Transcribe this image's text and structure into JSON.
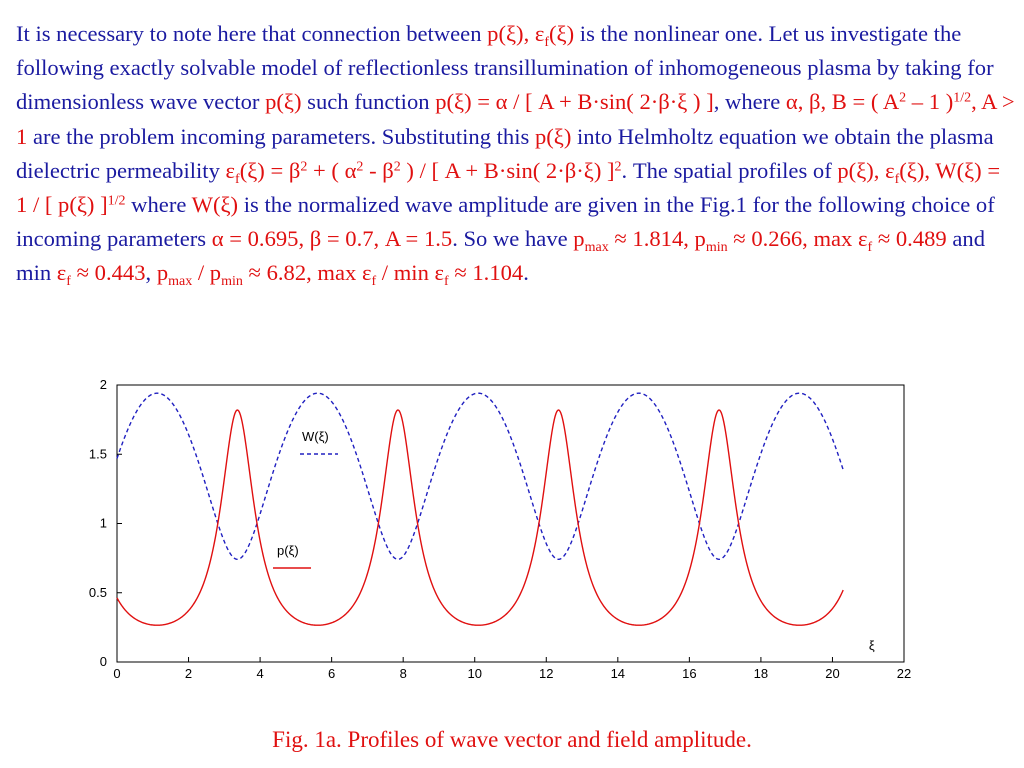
{
  "paragraph": {
    "s1": "It is necessary to note here that connection between ",
    "s2": "p(ξ), ε",
    "s3": "f",
    "s4": "(ξ)",
    "s5": " is the nonlinear one. Let us investigate the following exactly solvable model of reflectionless transillumination of inhomogeneous plasma by taking for dimensionless wave vector ",
    "s6": "p(ξ)",
    "s7": " such function ",
    "s8": "p(ξ) = α / [ A + B·sin( 2·β·ξ ) ]",
    "s9": ", where ",
    "s10": "α, β, B = ( A",
    "s11": "2",
    "s12": " – 1 )",
    "s13": "1/2",
    "s14": ", A > 1",
    "s15": " are the problem incoming parameters. Substituting this ",
    "s16": "p(ξ)",
    "s17": " into Helmholtz equation we obtain the plasma dielectric permeability ",
    "s18": "ε",
    "s19": "f",
    "s20": "(ξ) = β",
    "s21": "2",
    "s22": " + ( α",
    "s23": "2",
    "s24": " - β",
    "s25": "2",
    "s26": " ) / [ A + B·sin( 2·β·ξ) ]",
    "s27": "2",
    "s28": ". The spatial profiles of ",
    "s29": "p(ξ), ε",
    "s30": "f",
    "s31": "(ξ), W(ξ) = 1 / [ p(ξ) ]",
    "s32": "1/2",
    "s33": " where ",
    "s34": "W(ξ)",
    "s35": " is the normalized wave amplitude are given in the Fig.1 for the following choice of incoming parameters ",
    "s36": "α = 0.695, β = 0.7, A = 1.5",
    "s37": ". So we have ",
    "s38": "p",
    "s39": "max",
    "s40": " ≈ 1.814, p",
    "s41": "min",
    "s42": " ≈ 0.266, max ε",
    "s43": "f",
    "s44": " ≈ 0.489",
    "s45": " and min ",
    "s46": "ε",
    "s47": "f",
    "s48": " ≈ 0.443",
    "s49": ",  ",
    "s50": "p",
    "s51": "max",
    "s52": " / p",
    "s53": "min",
    "s54": " ≈ 6.82",
    "s55": ", max ε",
    "s56": "f",
    "s57": " / min ε",
    "s58": "f",
    "s59": " ≈ 1.104",
    "s60": "."
  },
  "caption": "Fig. 1a.  Profiles of wave vector and field amplitude.",
  "colors": {
    "text_blue": "#1a1aa0",
    "accent_red": "#e01010",
    "w_curve": "#2020c0",
    "p_curve": "#e01010"
  },
  "chart_data": {
    "type": "line",
    "title": "",
    "xlabel": "ξ",
    "ylabel": "",
    "xlim": [
      0,
      22
    ],
    "ylim": [
      0,
      2
    ],
    "xticks": [
      "0",
      "2",
      "4",
      "6",
      "8",
      "10",
      "12",
      "14",
      "16",
      "18",
      "20",
      "22"
    ],
    "yticks": [
      "0",
      "0.5",
      "1",
      "1.5",
      "2"
    ],
    "grid": false,
    "x_range": [
      0,
      20.3
    ],
    "params": {
      "alpha": 0.695,
      "beta": 0.7,
      "A": 1.5
    },
    "series": [
      {
        "name": "W(ξ)",
        "formula": "W(ξ) = 1 / [ p(ξ) ]^(1/2)",
        "style": "dashed",
        "color": "#2020c0"
      },
      {
        "name": "p(ξ)",
        "formula": "p(ξ) = α / [ A + B·sin( 2·β·ξ ) ]",
        "style": "solid",
        "color": "#e01010"
      }
    ]
  }
}
